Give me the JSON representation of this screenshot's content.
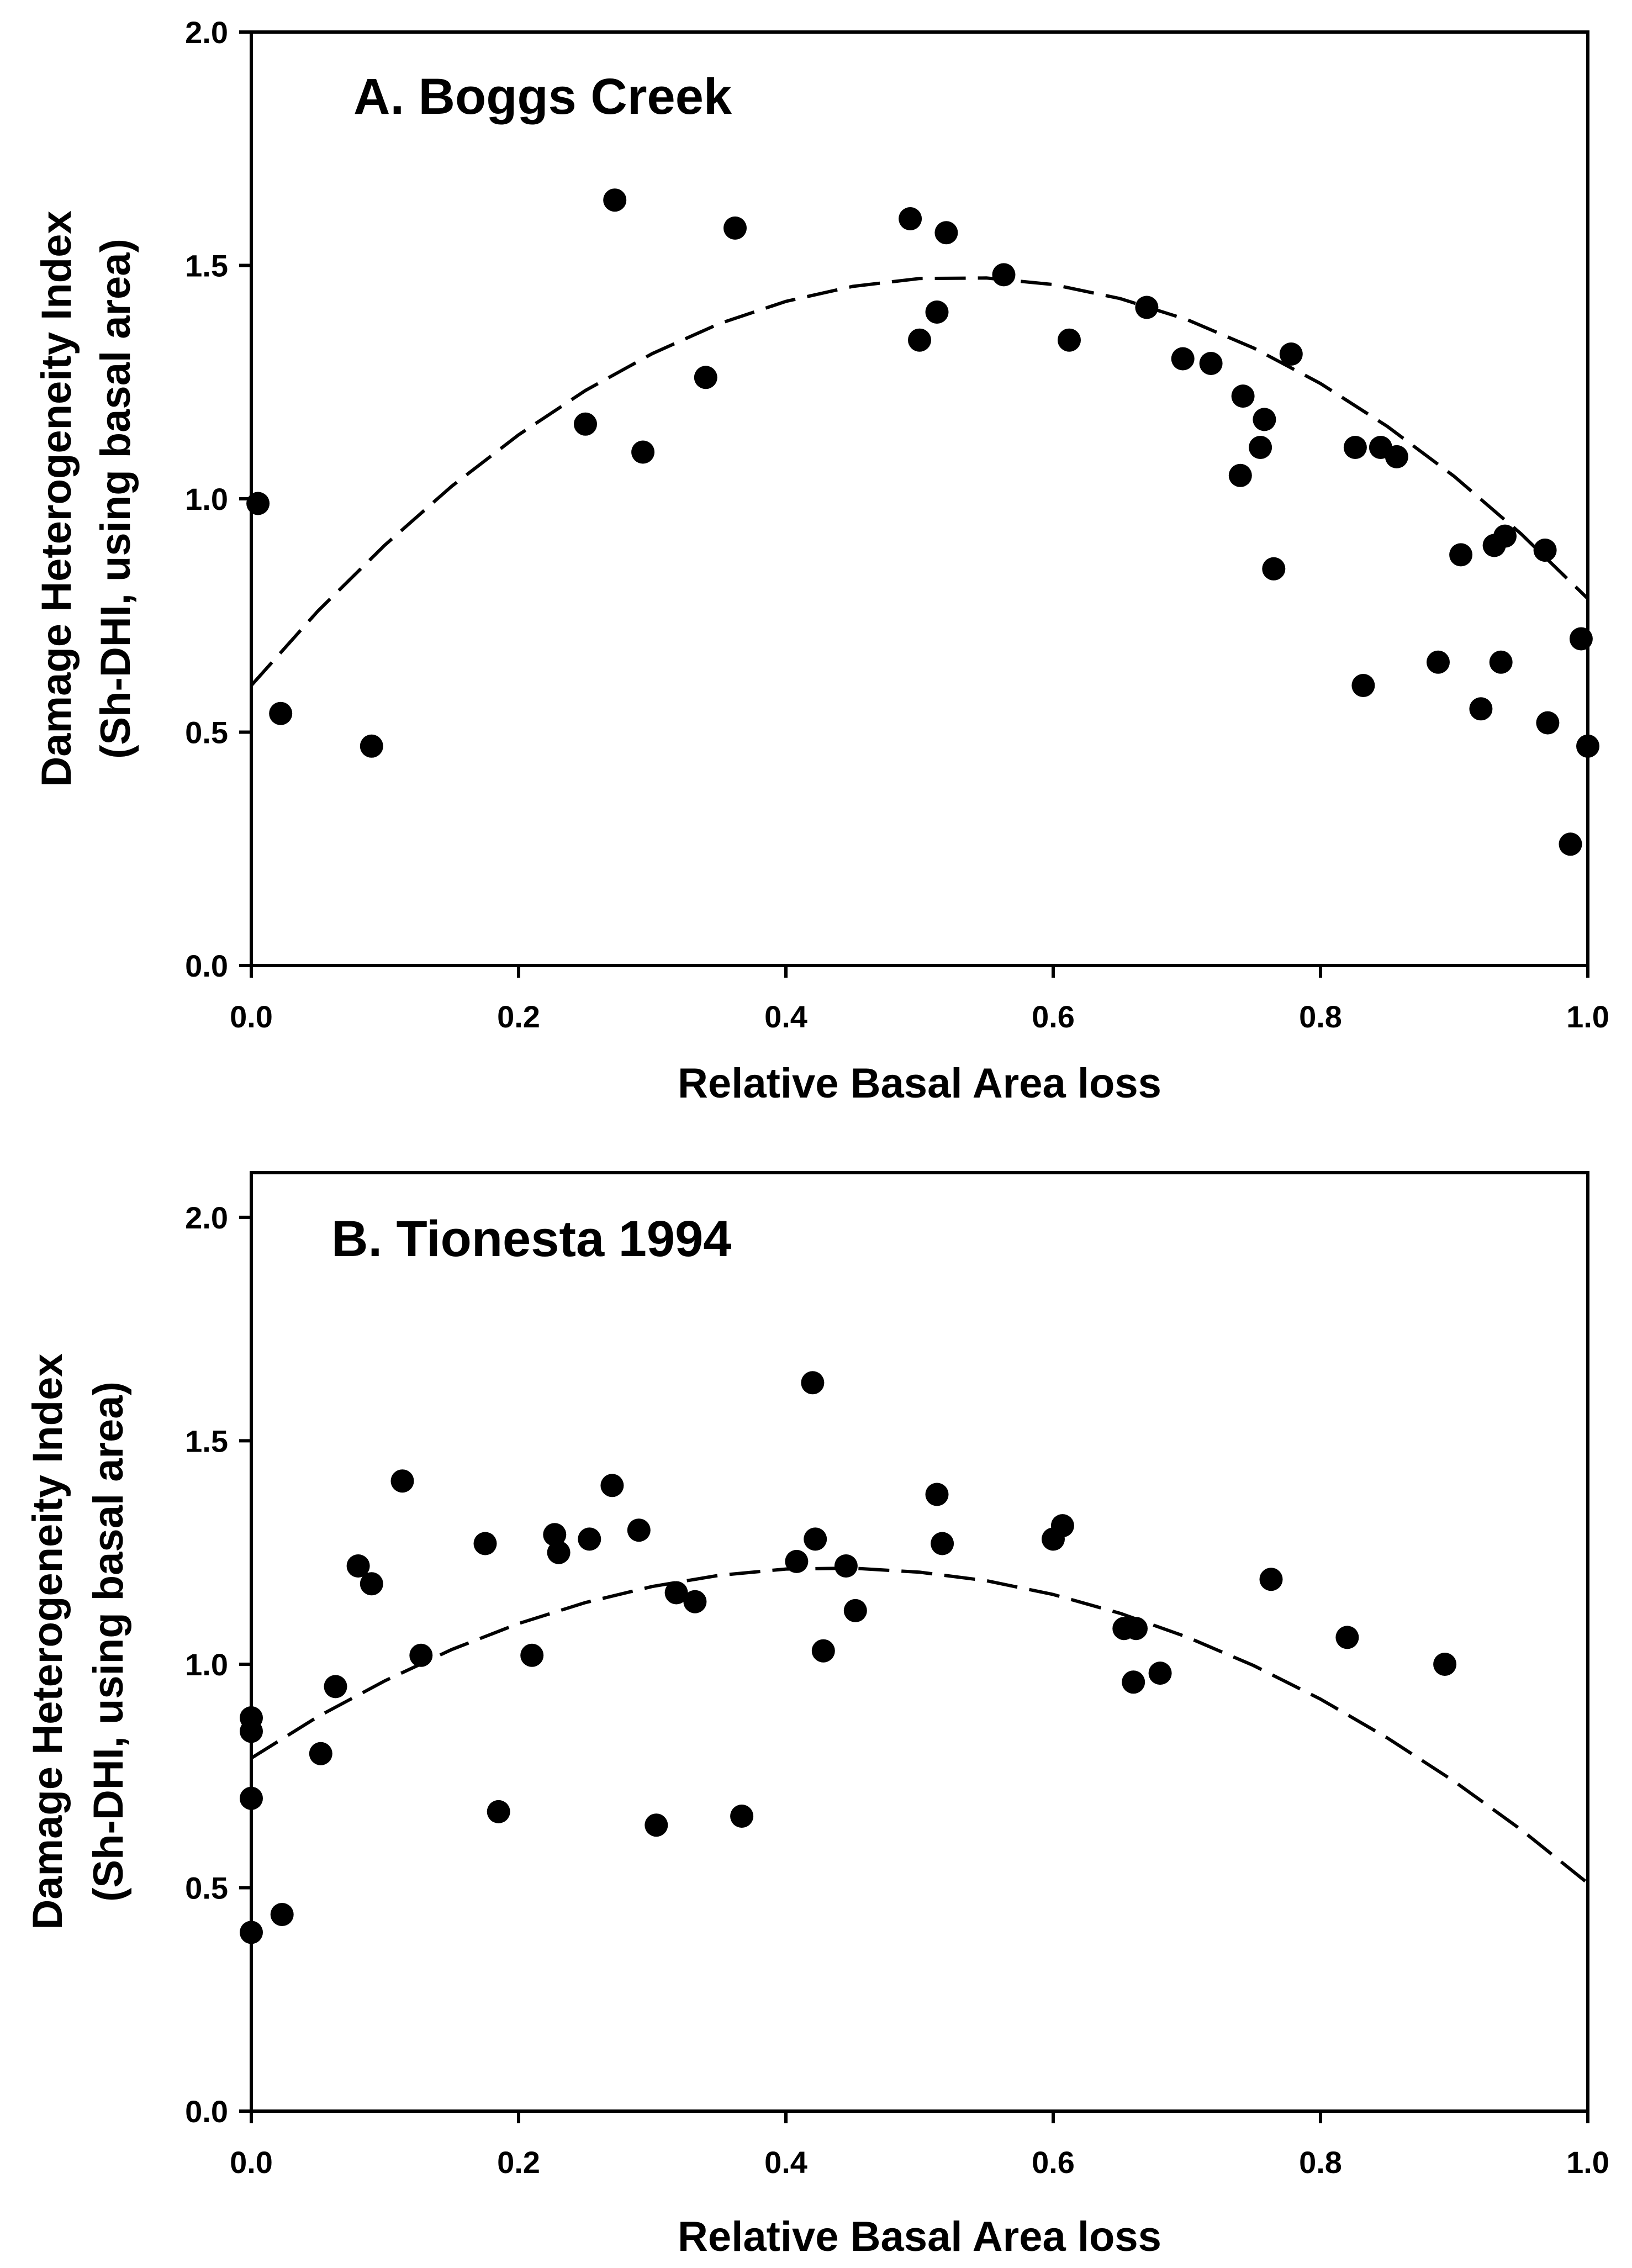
{
  "chart_data": [
    {
      "type": "scatter",
      "title": "A. Boggs Creek",
      "xlabel": "Relative Basal Area loss",
      "ylabel_line1": "Damage Heterogeneity Index",
      "ylabel_line2": "(Sh-DHI, using basal area)",
      "xlim": [
        0,
        1
      ],
      "ylim": [
        0,
        2
      ],
      "x_ticks": [
        0,
        0.2,
        0.4,
        0.6,
        0.8,
        1
      ],
      "x_tick_labels": [
        "0.0",
        "0.2",
        "0.4",
        "0.6",
        "0.8",
        "1.0"
      ],
      "y_ticks": [
        0,
        0.5,
        1,
        1.5,
        2
      ],
      "y_tick_labels": [
        "0.0",
        "0.5",
        "1.0",
        "1.5",
        "2.0"
      ],
      "grid": false,
      "points": {
        "x": [
          0.005,
          0.022,
          0.09,
          0.25,
          0.272,
          0.293,
          0.34,
          0.362,
          0.493,
          0.5,
          0.513,
          0.52,
          0.563,
          0.612,
          0.67,
          0.697,
          0.718,
          0.74,
          0.742,
          0.755,
          0.758,
          0.765,
          0.778,
          0.826,
          0.832,
          0.845,
          0.857,
          0.888,
          0.905,
          0.92,
          0.93,
          0.935,
          0.938,
          0.968,
          0.97,
          0.987,
          0.995,
          1.0
        ],
        "y": [
          0.99,
          0.54,
          0.47,
          1.16,
          1.64,
          1.1,
          1.26,
          1.58,
          1.6,
          1.34,
          1.4,
          1.57,
          1.48,
          1.34,
          1.41,
          1.3,
          1.29,
          1.05,
          1.22,
          1.11,
          1.17,
          0.85,
          1.31,
          1.11,
          0.6,
          1.11,
          1.09,
          0.65,
          0.88,
          0.55,
          0.9,
          0.65,
          0.92,
          0.89,
          0.52,
          0.26,
          0.7,
          0.47
        ]
      },
      "fit": {
        "label": "quadratic fit",
        "style": "dashed",
        "x": [
          0,
          0.05,
          0.1,
          0.15,
          0.2,
          0.25,
          0.3,
          0.35,
          0.4,
          0.45,
          0.5,
          0.55,
          0.6,
          0.65,
          0.7,
          0.75,
          0.8,
          0.85,
          0.9,
          0.95,
          1
        ],
        "y": [
          0.6,
          0.76,
          0.901,
          1.027,
          1.137,
          1.232,
          1.311,
          1.375,
          1.423,
          1.455,
          1.472,
          1.473,
          1.459,
          1.429,
          1.384,
          1.323,
          1.247,
          1.155,
          1.048,
          0.925,
          0.786
        ]
      }
    },
    {
      "type": "scatter",
      "title": "B. Tionesta 1994",
      "xlabel": "Relative Basal Area loss",
      "ylabel_line1": "Damage Heterogeneity Index",
      "ylabel_line2": "(Sh-DHI, using basal area)",
      "xlim": [
        0,
        1
      ],
      "ylim": [
        0,
        2.1
      ],
      "x_ticks": [
        0,
        0.2,
        0.4,
        0.6,
        0.8,
        1
      ],
      "x_tick_labels": [
        "0.0",
        "0.2",
        "0.4",
        "0.6",
        "0.8",
        "1.0"
      ],
      "y_ticks": [
        0,
        0.5,
        1,
        1.5,
        2
      ],
      "y_tick_labels": [
        "0.0",
        "0.5",
        "1.0",
        "1.5",
        "2.0"
      ],
      "grid": false,
      "points": {
        "x": [
          0.0,
          0.0,
          0.0,
          0.0,
          0.023,
          0.052,
          0.063,
          0.08,
          0.09,
          0.113,
          0.127,
          0.175,
          0.185,
          0.21,
          0.227,
          0.23,
          0.253,
          0.27,
          0.29,
          0.303,
          0.318,
          0.332,
          0.367,
          0.408,
          0.42,
          0.422,
          0.428,
          0.445,
          0.452,
          0.513,
          0.517,
          0.6,
          0.607,
          0.653,
          0.66,
          0.662,
          0.68,
          0.763,
          0.82,
          0.893
        ],
        "y": [
          0.88,
          0.85,
          0.7,
          0.4,
          0.44,
          0.8,
          0.95,
          1.22,
          1.18,
          1.41,
          1.02,
          1.27,
          0.67,
          1.02,
          1.29,
          1.25,
          1.28,
          1.4,
          1.3,
          0.64,
          1.16,
          1.14,
          0.66,
          1.23,
          1.63,
          1.28,
          1.03,
          1.22,
          1.12,
          1.38,
          1.27,
          1.28,
          1.31,
          1.08,
          0.96,
          1.08,
          0.98,
          1.19,
          1.06,
          1.0
        ]
      },
      "fit": {
        "label": "quadratic fit",
        "style": "dashed",
        "x": [
          0,
          0.05,
          0.1,
          0.15,
          0.2,
          0.25,
          0.3,
          0.35,
          0.4,
          0.45,
          0.5,
          0.55,
          0.6,
          0.65,
          0.7,
          0.75,
          0.8,
          0.85,
          0.9,
          0.95,
          1
        ],
        "y": [
          0.79,
          0.883,
          0.963,
          1.033,
          1.091,
          1.138,
          1.174,
          1.199,
          1.213,
          1.215,
          1.206,
          1.187,
          1.156,
          1.114,
          1.061,
          0.997,
          0.922,
          0.835,
          0.738,
          0.63,
          0.51
        ]
      }
    }
  ]
}
